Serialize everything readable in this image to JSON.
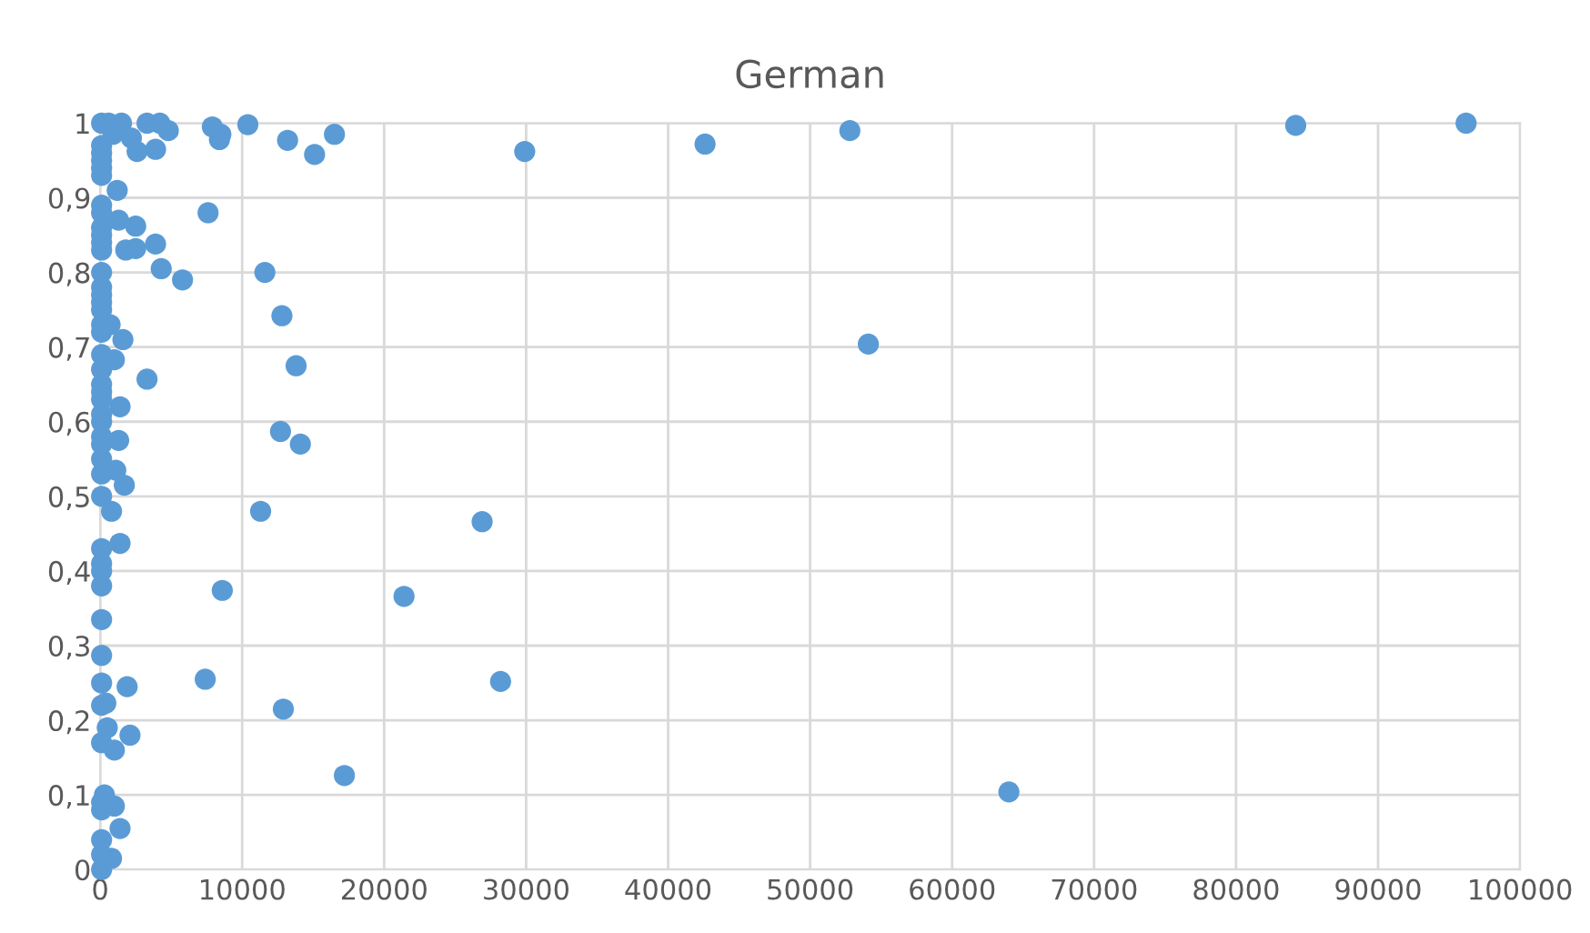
{
  "chart_data": {
    "type": "scatter",
    "title": "German",
    "marker": "circle",
    "grid": true,
    "series": [
      {
        "color": "#5b9bd5",
        "x": [
          96200,
          84200,
          52800,
          42600,
          29900,
          16500,
          15100,
          13200,
          10400,
          8500,
          8400,
          7900,
          4800,
          4200,
          3900,
          3300,
          2600,
          2200,
          1500,
          900,
          600,
          7600,
          11600,
          4300,
          5800,
          2500,
          3900,
          2500,
          1800,
          12800,
          54100,
          1600,
          13800,
          3300,
          12700,
          14100,
          1400,
          1300,
          1100,
          1700,
          26900,
          11300,
          800,
          1400,
          8600,
          21400,
          28200,
          7400,
          1900,
          12900,
          17200,
          64000,
          2100,
          1000,
          500,
          400,
          1400,
          1000,
          800,
          300,
          1200,
          1300,
          1000,
          700,
          100,
          100,
          100,
          100,
          100,
          100,
          100,
          100,
          100,
          100,
          100,
          100,
          100,
          100,
          100,
          100,
          100,
          100,
          100,
          100,
          100,
          100,
          100,
          100,
          100,
          100,
          100,
          100,
          100,
          100,
          100,
          100,
          100,
          100,
          100,
          100,
          100,
          100,
          100,
          100,
          100,
          100,
          100,
          100,
          100
        ],
        "values": [
          1.0,
          0.997,
          0.99,
          0.972,
          0.962,
          0.985,
          0.958,
          0.977,
          0.998,
          0.985,
          0.978,
          0.995,
          0.99,
          1.0,
          0.965,
          1.0,
          0.962,
          0.98,
          1.0,
          0.985,
          1.0,
          0.88,
          0.8,
          0.805,
          0.79,
          0.862,
          0.838,
          0.832,
          0.83,
          0.742,
          0.704,
          0.71,
          0.675,
          0.657,
          0.587,
          0.57,
          0.62,
          0.575,
          0.535,
          0.515,
          0.466,
          0.48,
          0.48,
          0.437,
          0.374,
          0.366,
          0.252,
          0.255,
          0.245,
          0.215,
          0.126,
          0.104,
          0.18,
          0.16,
          0.19,
          0.223,
          0.055,
          0.085,
          0.015,
          0.1,
          0.91,
          0.87,
          0.683,
          0.73,
          1.0,
          0.97,
          0.96,
          0.95,
          0.94,
          0.93,
          0.89,
          0.88,
          0.86,
          0.85,
          0.84,
          0.83,
          0.8,
          0.78,
          0.77,
          0.76,
          0.75,
          0.73,
          0.72,
          0.69,
          0.67,
          0.65,
          0.64,
          0.63,
          0.61,
          0.6,
          0.58,
          0.57,
          0.55,
          0.53,
          0.5,
          0.43,
          0.41,
          0.4,
          0.38,
          0.335,
          0.287,
          0.25,
          0.22,
          0.17,
          0.09,
          0.08,
          0.04,
          0.02,
          0.0
        ]
      }
    ],
    "xlim": [
      0,
      100000
    ],
    "xticks": [
      0,
      10000,
      20000,
      30000,
      40000,
      50000,
      60000,
      70000,
      80000,
      90000,
      100000
    ],
    "ylim": [
      0,
      1
    ],
    "yticks": [
      0,
      {
        "value": 0.1,
        "label": "0,1"
      },
      {
        "value": 0.2,
        "label": "0,2"
      },
      {
        "value": 0.3,
        "label": "0,3"
      },
      {
        "value": 0.4,
        "label": "0,4"
      },
      {
        "value": 0.5,
        "label": "0,5"
      },
      {
        "value": 0.6,
        "label": "0,6"
      },
      {
        "value": 0.7,
        "label": "0,7"
      },
      {
        "value": 0.8,
        "label": "0,8"
      },
      {
        "value": 0.9,
        "label": "0,9"
      },
      1
    ]
  }
}
